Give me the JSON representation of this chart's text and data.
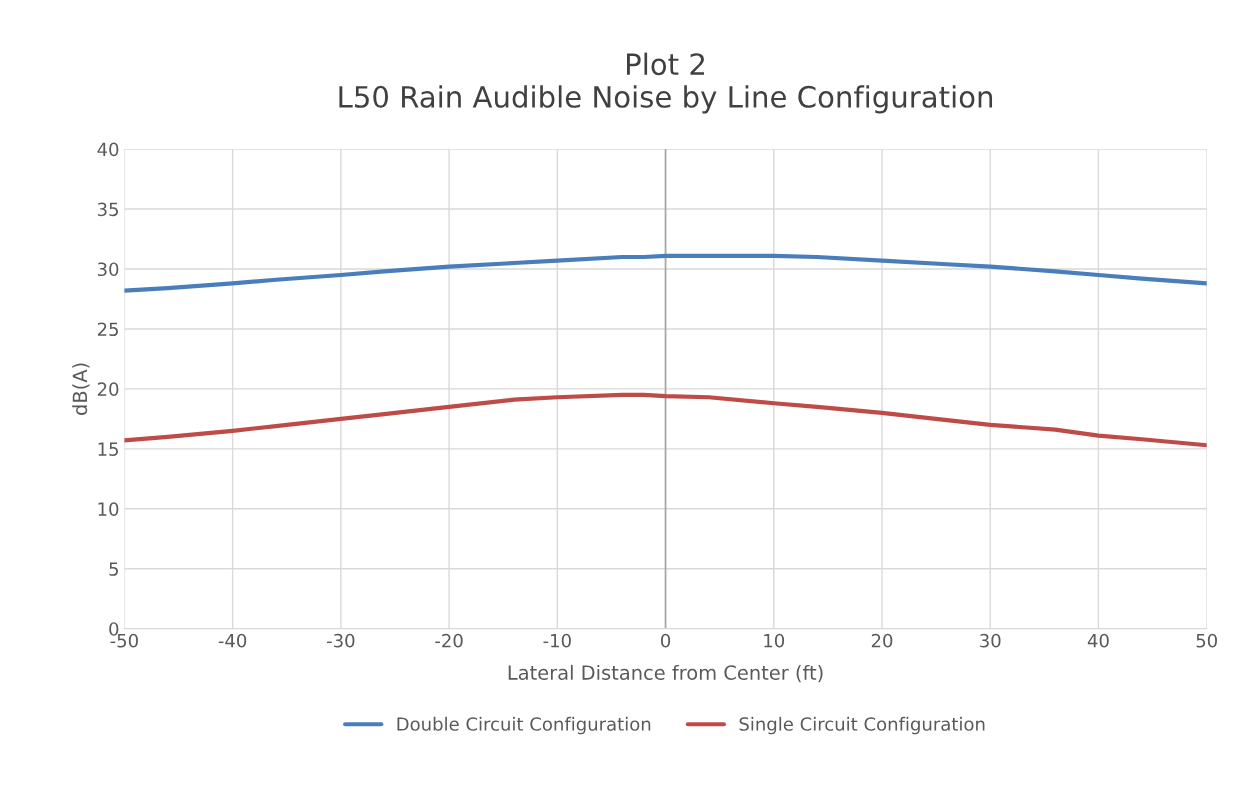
{
  "chart_data": {
    "type": "line",
    "title": "Plot 2\nL50 Rain Audible Noise by Line Configuration",
    "xlabel": "Lateral Distance from Center (ft)",
    "ylabel": "dB(A)",
    "x": [
      -50,
      -46,
      -40,
      -36,
      -30,
      -26,
      -20,
      -14,
      -10,
      -4,
      -2,
      0,
      4,
      10,
      14,
      20,
      26,
      30,
      36,
      40,
      44,
      50
    ],
    "series": [
      {
        "name": "Double Circuit Configuration",
        "color": "#4a7ebb",
        "values": [
          28.2,
          28.4,
          28.8,
          29.1,
          29.5,
          29.8,
          30.2,
          30.5,
          30.7,
          31.0,
          31.0,
          31.1,
          31.1,
          31.1,
          31.0,
          30.7,
          30.4,
          30.2,
          29.8,
          29.5,
          29.2,
          28.8
        ]
      },
      {
        "name": "Single Circuit Configuration",
        "color": "#be4b48",
        "values": [
          15.7,
          16.0,
          16.5,
          16.9,
          17.5,
          17.9,
          18.5,
          19.1,
          19.3,
          19.5,
          19.5,
          19.4,
          19.3,
          18.8,
          18.5,
          18.0,
          17.4,
          17.0,
          16.6,
          16.1,
          15.8,
          15.3
        ]
      }
    ],
    "xlim": [
      -50,
      50
    ],
    "xticks": [
      -50,
      -40,
      -30,
      -20,
      -10,
      0,
      10,
      20,
      30,
      40,
      50
    ],
    "ylim": [
      0,
      40
    ],
    "yticks": [
      0,
      5,
      10,
      15,
      20,
      25,
      30,
      35,
      40
    ],
    "ref_lines": [
      {
        "axis": "x",
        "value": 0,
        "color": "#a6a6a6"
      }
    ],
    "grid": true,
    "legend": "bottom",
    "marker": "none",
    "line_style": "solid"
  }
}
